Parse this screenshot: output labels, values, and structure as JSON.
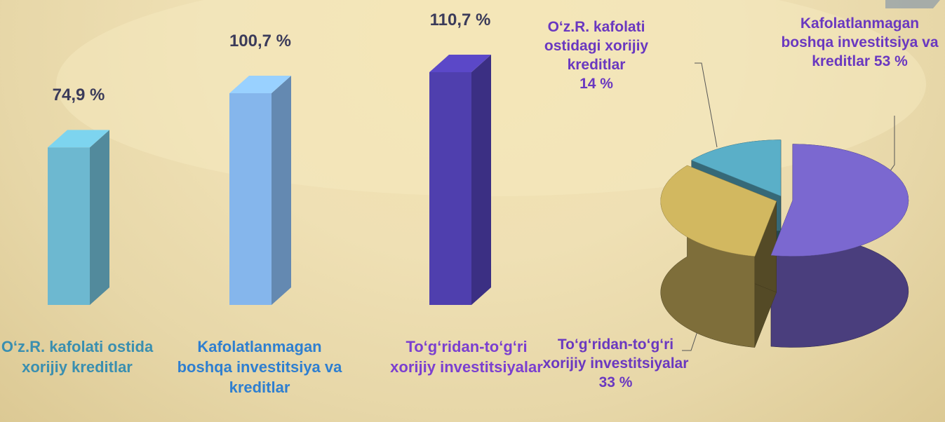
{
  "chart_data": [
    {
      "type": "bar",
      "categories": [
        "O‘z.R. kafolati ostida xorijiy kreditlar",
        "Kafolatlanmagan boshqa investitsiya va kreditlar",
        "To‘g‘ridan-to‘g‘ri xorijiy investitsiyalar"
      ],
      "values": [
        74.9,
        100.7,
        110.7
      ],
      "value_labels": [
        "74,9 %",
        "100,7 %",
        "110,7 %"
      ],
      "colors": [
        "#6db8d0",
        "#85b6ec",
        "#4f3fae"
      ]
    },
    {
      "type": "pie",
      "categories": [
        "Kafolatlanmagan boshqa investitsiya va kreditlar",
        "To‘g‘ridan-to‘g‘ri xorijiy investitsiyalar",
        "O‘z.R. kafolati ostidagi xorijiy kreditlar"
      ],
      "values": [
        53,
        33,
        14
      ],
      "value_labels": [
        "53 %",
        "33 %",
        "14 %"
      ],
      "colors": [
        "#7b68d0",
        "#d2b860",
        "#5aafc8"
      ]
    }
  ]
}
